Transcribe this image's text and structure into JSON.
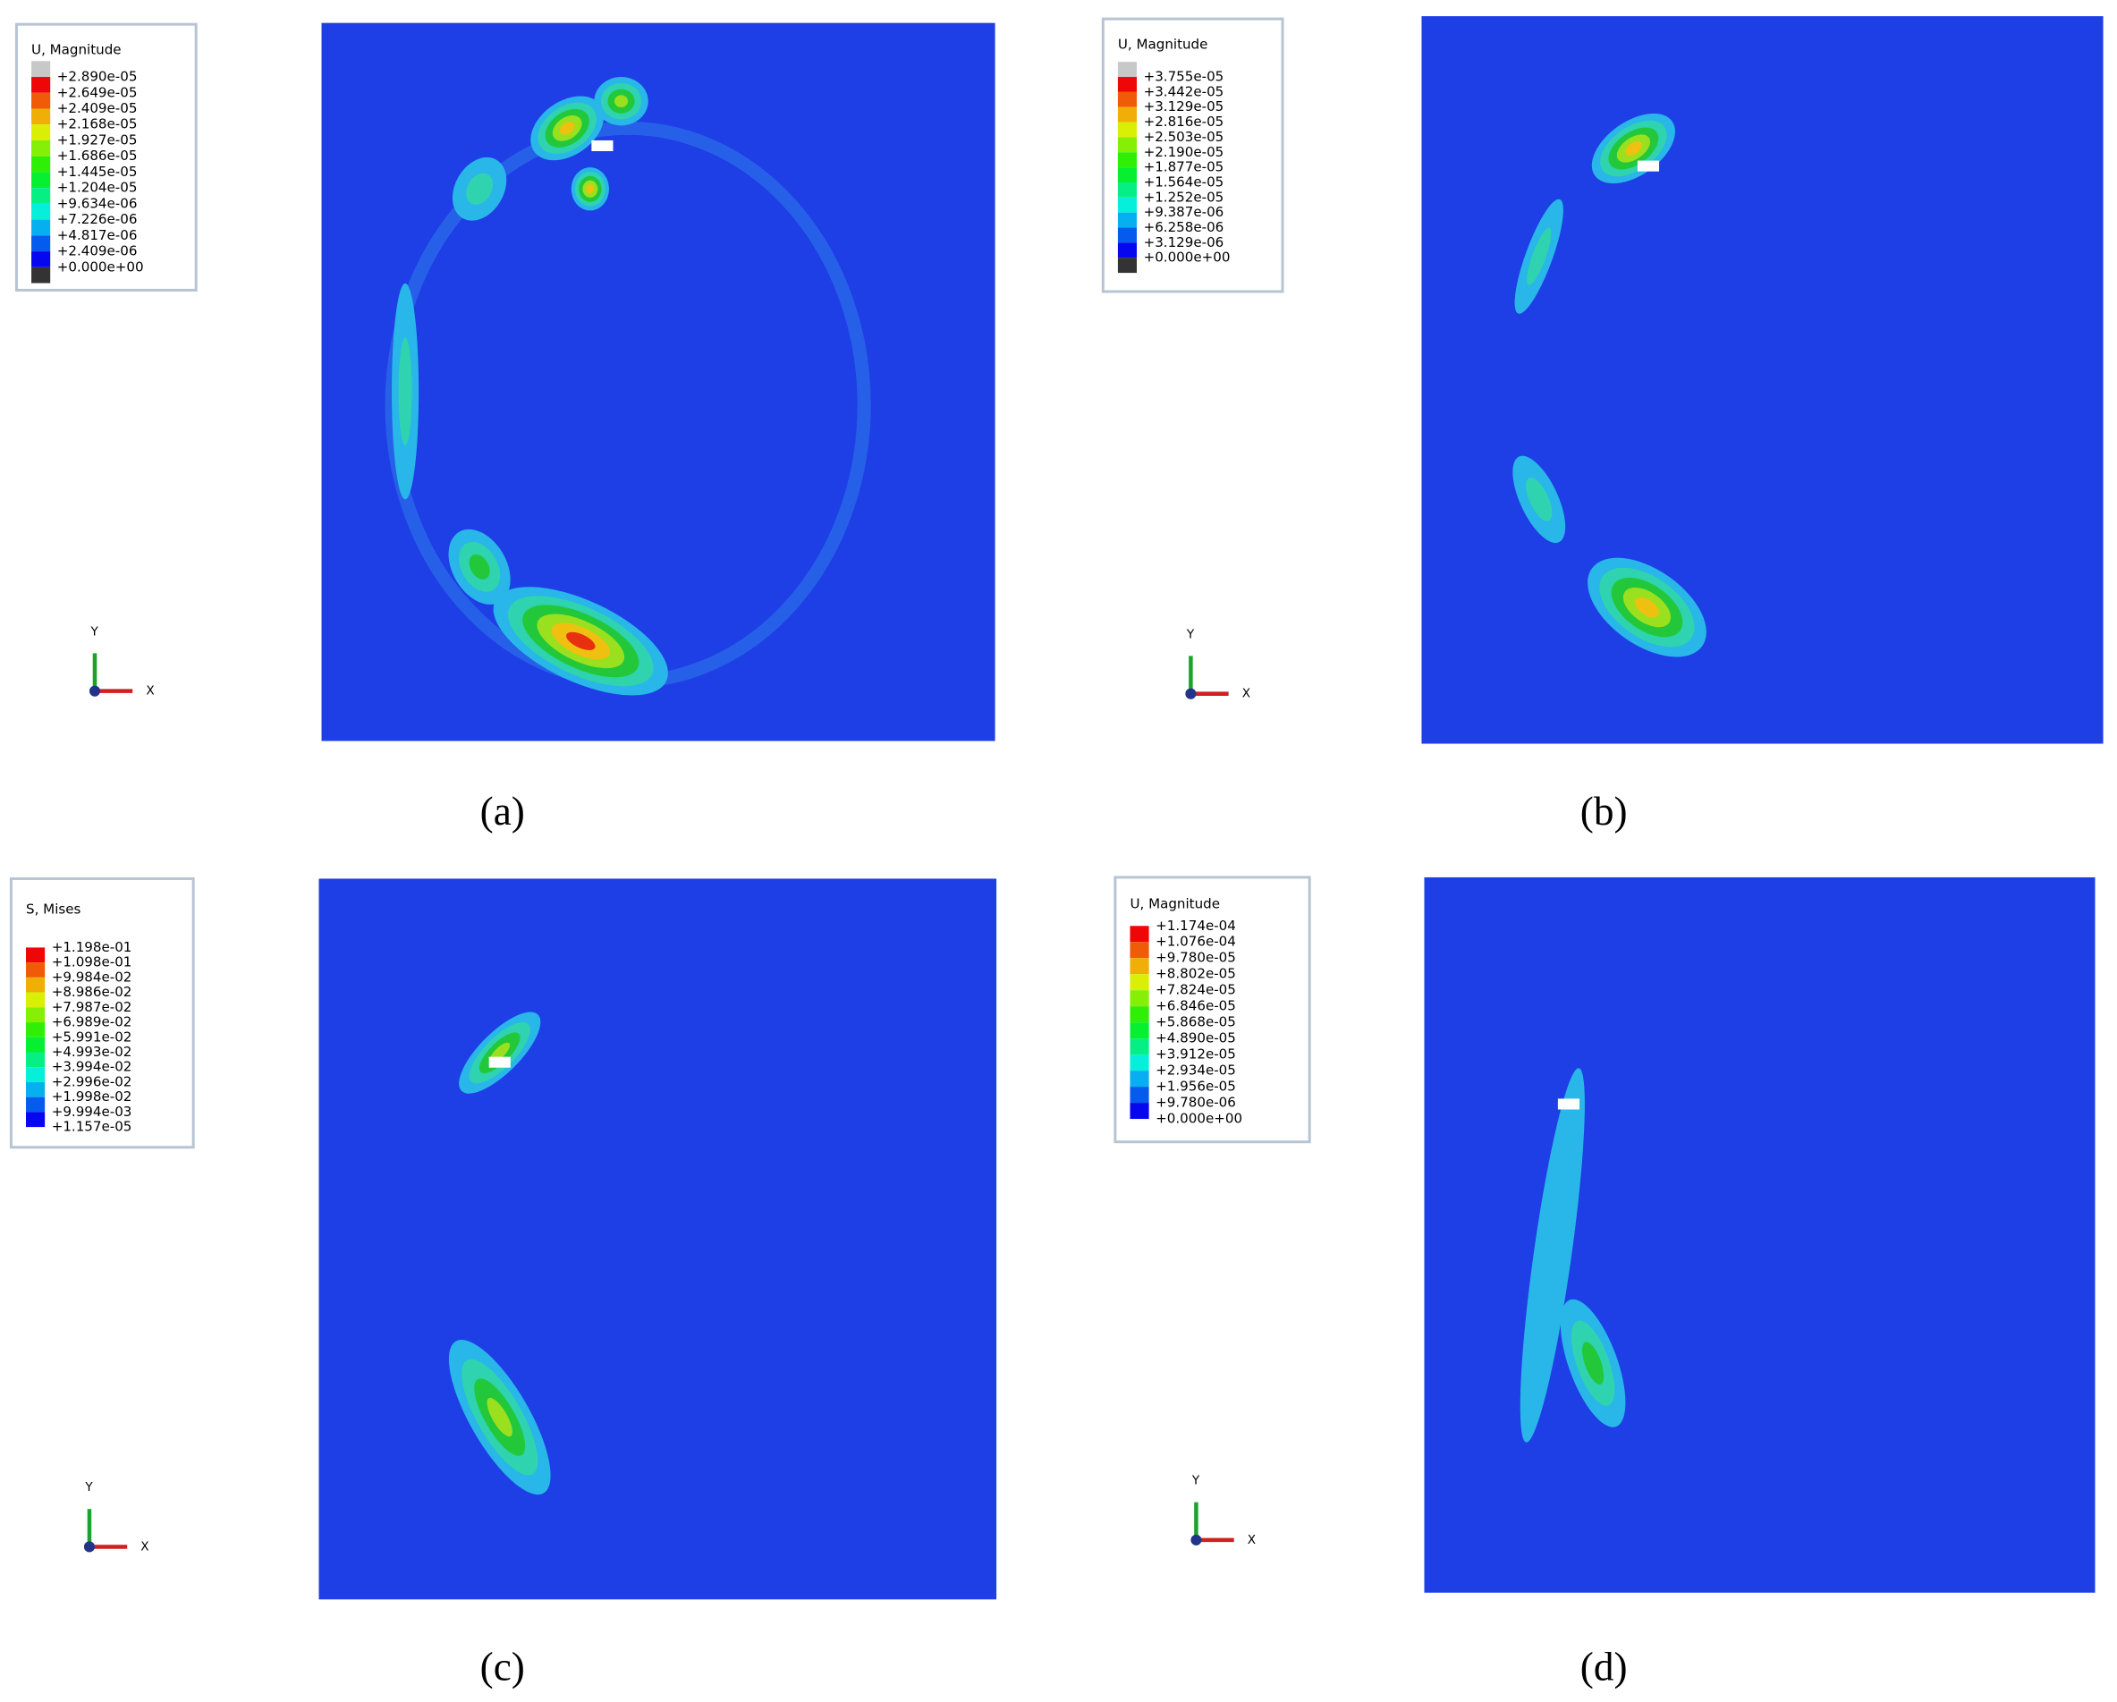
{
  "panels": [
    {
      "legend": {
        "title": "U, Magnitude",
        "labels": [
          "+2.890e-05",
          "+2.649e-05",
          "+2.409e-05",
          "+2.168e-05",
          "+1.927e-05",
          "+1.686e-05",
          "+1.445e-05",
          "+1.204e-05",
          "+9.634e-06",
          "+7.226e-06",
          "+4.817e-06",
          "+2.409e-06",
          "+0.000e+00"
        ]
      },
      "axis_labels": {
        "y": "Y",
        "x": "X"
      },
      "caption": "(a)"
    },
    {
      "legend": {
        "title": "U, Magnitude",
        "labels": [
          "+3.755e-05",
          "+3.442e-05",
          "+3.129e-05",
          "+2.816e-05",
          "+2.503e-05",
          "+2.190e-05",
          "+1.877e-05",
          "+1.564e-05",
          "+1.252e-05",
          "+9.387e-06",
          "+6.258e-06",
          "+3.129e-06",
          "+0.000e+00"
        ]
      },
      "axis_labels": {
        "y": "Y",
        "x": "X"
      },
      "caption": "(b)"
    },
    {
      "legend": {
        "title": "S, Mises",
        "labels": [
          "+1.198e-01",
          "+1.098e-01",
          "+9.984e-02",
          "+8.986e-02",
          "+7.987e-02",
          "+6.989e-02",
          "+5.991e-02",
          "+4.993e-02",
          "+3.994e-02",
          "+2.996e-02",
          "+1.998e-02",
          "+9.994e-03",
          "+1.157e-05"
        ]
      },
      "axis_labels": {
        "y": "Y",
        "x": "X"
      },
      "caption": "(c)"
    },
    {
      "legend": {
        "title": "U, Magnitude",
        "labels": [
          "+1.174e-04",
          "+1.076e-04",
          "+9.780e-05",
          "+8.802e-05",
          "+7.824e-05",
          "+6.846e-05",
          "+5.868e-05",
          "+4.890e-05",
          "+3.912e-05",
          "+2.934e-05",
          "+1.956e-05",
          "+9.780e-06",
          "+0.000e+00"
        ]
      },
      "axis_labels": {
        "y": "Y",
        "x": "X"
      },
      "caption": "(d)"
    }
  ]
}
